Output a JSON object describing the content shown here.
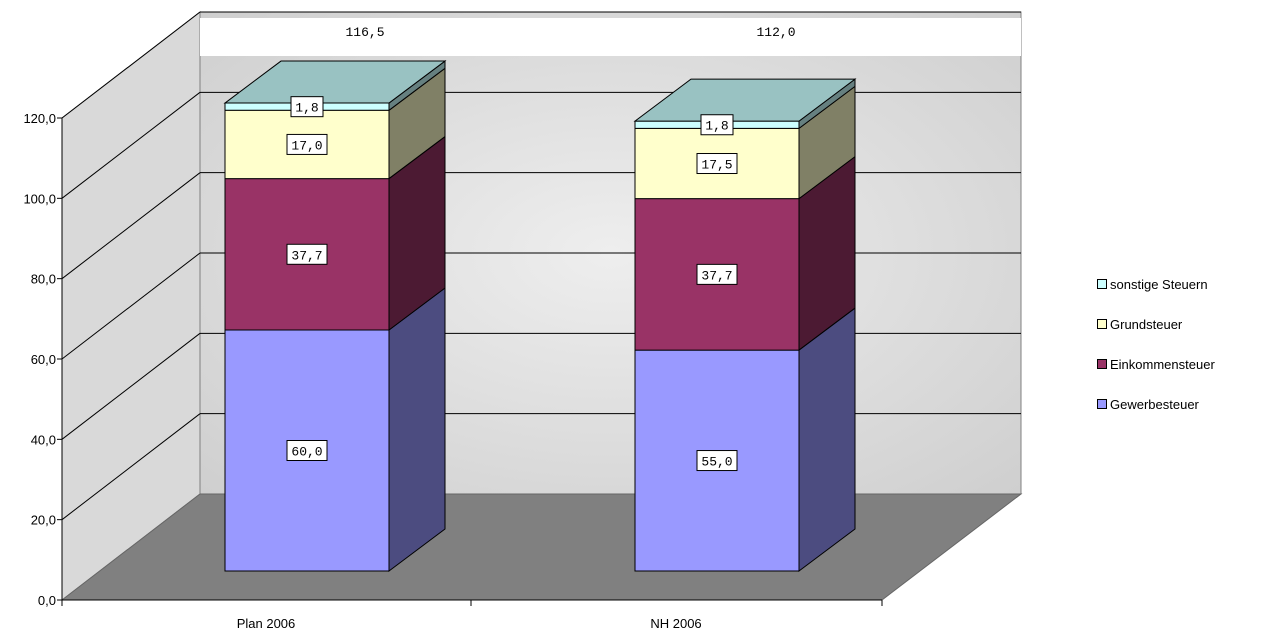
{
  "chart_data": {
    "type": "bar",
    "stacked": true,
    "three_d": true,
    "categories": [
      "Plan 2006",
      "NH 2006"
    ],
    "series": [
      {
        "name": "Gewerbesteuer",
        "values": [
          60.0,
          55.0
        ],
        "labels": [
          "60,0",
          "55,0"
        ],
        "color": "#9999ff",
        "side_color": "#4c4c80",
        "top_color": "#9999ff"
      },
      {
        "name": "Einkommensteuer",
        "values": [
          37.7,
          37.7
        ],
        "labels": [
          "37,7",
          "37,7"
        ],
        "color": "#993366",
        "side_color": "#4c1a33",
        "top_color": "#993366"
      },
      {
        "name": "Grundsteuer",
        "values": [
          17.0,
          17.5
        ],
        "labels": [
          "17,0",
          "17,5"
        ],
        "color": "#ffffcc",
        "side_color": "#808066",
        "top_color": "#ffffcc"
      },
      {
        "name": "sonstige Steuern",
        "values": [
          1.8,
          1.8
        ],
        "labels": [
          "1,8",
          "1,8"
        ],
        "color": "#ccffff",
        "side_color": "#668080",
        "top_color": "#99c2c2"
      }
    ],
    "totals": [
      "116,5",
      "112,0"
    ],
    "y_ticks": [
      "0,0",
      "20,0",
      "40,0",
      "60,0",
      "80,0",
      "100,0",
      "120,0"
    ],
    "ylim": [
      0,
      120
    ],
    "title": "",
    "xlabel": "",
    "ylabel": "",
    "grid": true,
    "legend_position": "right"
  }
}
